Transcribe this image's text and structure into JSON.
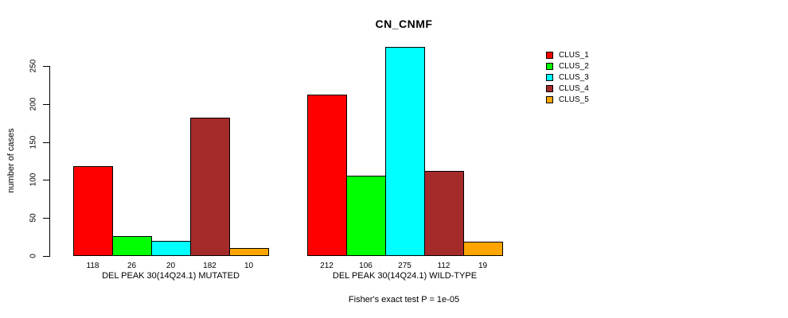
{
  "chart_data": {
    "type": "bar",
    "title": "CN_CNMF",
    "ylabel": "number of cases",
    "xlabel": "",
    "ylim": [
      0,
      280
    ],
    "yticks": [
      0,
      50,
      100,
      150,
      200,
      250
    ],
    "grid": false,
    "legend_position": "right",
    "categories": [
      "DEL PEAK 30(14Q24.1) MUTATED",
      "DEL PEAK 30(14Q24.1) WILD-TYPE"
    ],
    "series": [
      {
        "name": "CLUS_1",
        "color": "#FF0000",
        "values": [
          118,
          212
        ]
      },
      {
        "name": "CLUS_2",
        "color": "#00FF00",
        "values": [
          26,
          106
        ]
      },
      {
        "name": "CLUS_3",
        "color": "#00FFFF",
        "values": [
          20,
          275
        ]
      },
      {
        "name": "CLUS_4",
        "color": "#A52A2A",
        "values": [
          182,
          112
        ]
      },
      {
        "name": "CLUS_5",
        "color": "#FFA500",
        "values": [
          10,
          19
        ]
      }
    ],
    "bar_value_labels": [
      [
        118,
        26,
        20,
        182,
        10
      ],
      [
        212,
        106,
        275,
        112,
        19
      ]
    ],
    "annotation": "Fisher's exact test P = 1e-05"
  }
}
